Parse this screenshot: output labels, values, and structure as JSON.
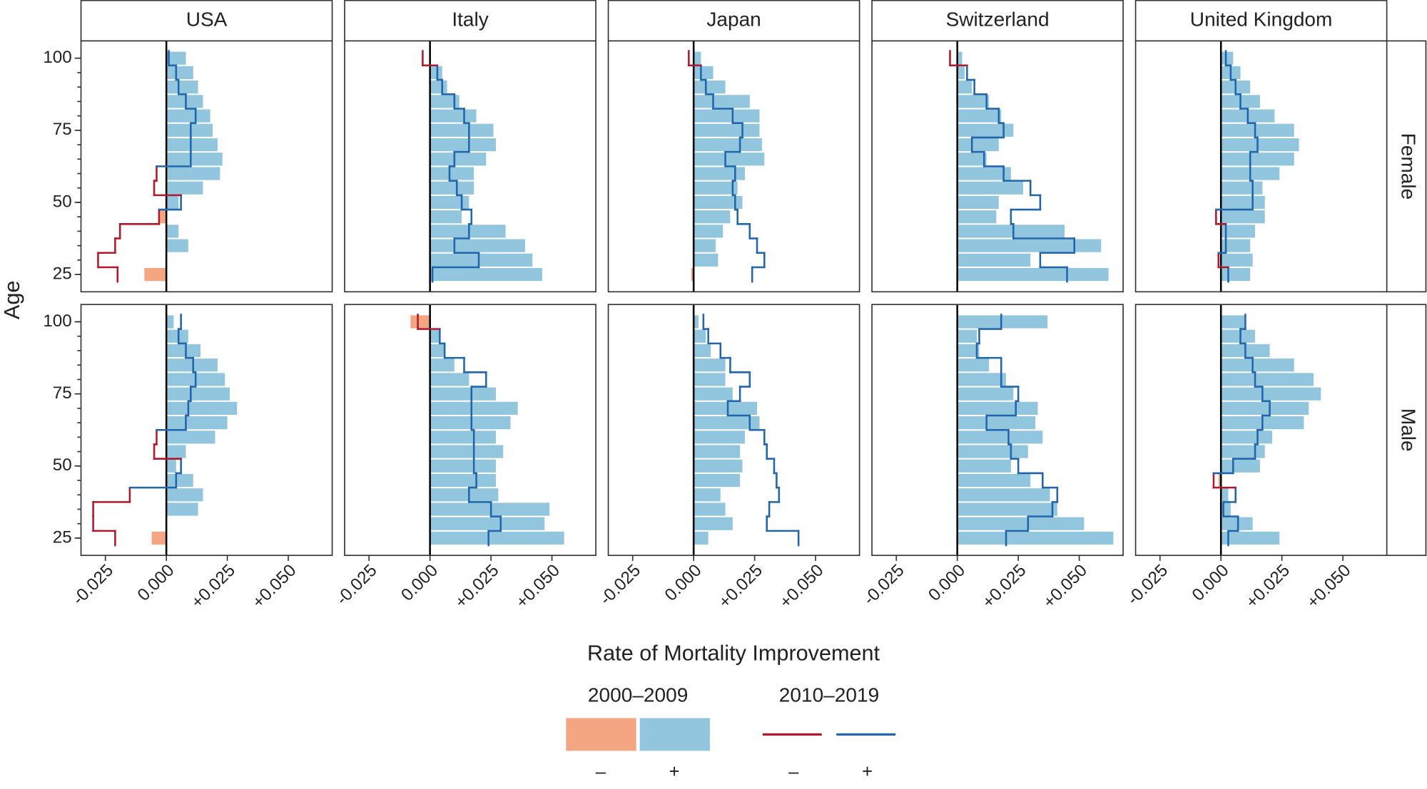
{
  "chart_data": {
    "type": "faceted-bar-step",
    "x_label": "Rate of Mortality Improvement",
    "y_label": "Age",
    "columns": [
      "USA",
      "Italy",
      "Japan",
      "Switzerland",
      "United Kingdom"
    ],
    "rows": [
      "Female",
      "Male"
    ],
    "y": [
      25,
      30,
      35,
      40,
      45,
      50,
      55,
      60,
      65,
      70,
      75,
      80,
      85,
      90,
      95,
      100
    ],
    "ylim": [
      19,
      106
    ],
    "yticks": [
      25,
      50,
      75,
      100
    ],
    "xlim": [
      -0.035,
      0.068
    ],
    "xticks": [
      {
        "value": -0.025,
        "label": "-0.025"
      },
      {
        "value": 0,
        "label": "0.000"
      },
      {
        "value": 0.025,
        "label": "+0.025"
      },
      {
        "value": 0.05,
        "label": "+0.050"
      }
    ],
    "zero_line": true,
    "series": [
      {
        "name": "2000–2009",
        "kind": "bar",
        "labels": [
          "–",
          "+"
        ],
        "colors": [
          "#f4a582",
          "#92c5de"
        ]
      },
      {
        "name": "2010–2019",
        "kind": "step",
        "labels": [
          "–",
          "+"
        ],
        "colors": [
          "#b2182b",
          "#2166ac"
        ]
      }
    ],
    "panels": [
      [
        [
          [
            -0.009,
            0,
            0.009,
            0.005,
            -0.003,
            0.005,
            0.015,
            0.022,
            0.023,
            0.021,
            0.019,
            0.018,
            0.015,
            0.013,
            0.011,
            0.008
          ],
          [
            -0.02,
            -0.028,
            -0.021,
            -0.019,
            -0.003,
            0.006,
            -0.005,
            -0.004,
            0.01,
            0.01,
            0.01,
            0.012,
            0.008,
            0.005,
            0.004,
            0.001
          ]
        ],
        [
          [
            0.046,
            0.042,
            0.039,
            0.031,
            0.013,
            0.016,
            0.018,
            0.018,
            0.023,
            0.027,
            0.026,
            0.019,
            0.012,
            0.007,
            0.005,
            0
          ],
          [
            0.001,
            0.02,
            0.01,
            0.016,
            0.017,
            0.013,
            0.011,
            0.008,
            0.01,
            0.016,
            0.016,
            0.014,
            0.01,
            0.005,
            0.003,
            -0.003
          ]
        ],
        [
          [
            -0.001,
            0.01,
            0.009,
            0.012,
            0.015,
            0.02,
            0.018,
            0.021,
            0.029,
            0.028,
            0.027,
            0.027,
            0.023,
            0.013,
            0.008,
            0.003
          ],
          [
            0.024,
            0.029,
            0.026,
            0.023,
            0.018,
            0.017,
            0.016,
            0.017,
            0.013,
            0.019,
            0.02,
            0.016,
            0.008,
            0.005,
            0.003,
            -0.002
          ]
        ],
        [
          [
            0.062,
            0.03,
            0.059,
            0.044,
            0.016,
            0.017,
            0.027,
            0.022,
            0.012,
            0.017,
            0.023,
            0.018,
            0.013,
            0.006,
            0.003,
            0.002
          ],
          [
            0.045,
            0.034,
            0.048,
            0.023,
            0.022,
            0.034,
            0.03,
            0.019,
            0.011,
            0.006,
            0.019,
            0.017,
            0.012,
            0.007,
            0.004,
            -0.003
          ]
        ],
        [
          [
            0.012,
            0.013,
            0.012,
            0.014,
            0.018,
            0.018,
            0.017,
            0.024,
            0.03,
            0.032,
            0.03,
            0.022,
            0.016,
            0.012,
            0.008,
            0.005
          ],
          [
            0.003,
            -0.001,
            0.002,
            0.002,
            -0.002,
            0.013,
            0.013,
            0.012,
            0.012,
            0.015,
            0.014,
            0.011,
            0.008,
            0.006,
            0.004,
            0.002
          ]
        ]
      ],
      [
        [
          [
            -0.006,
            0,
            0.013,
            0.015,
            0.011,
            0.004,
            0.008,
            0.02,
            0.025,
            0.029,
            0.026,
            0.024,
            0.021,
            0.014,
            0.009,
            0.003
          ],
          [
            -0.021,
            -0.03,
            -0.03,
            -0.015,
            0.004,
            0.006,
            -0.005,
            -0.004,
            0.008,
            0.009,
            0.01,
            0.012,
            0.011,
            0.008,
            0.005,
            0.006
          ]
        ],
        [
          [
            0.055,
            0.047,
            0.049,
            0.028,
            0.027,
            0.027,
            0.03,
            0.027,
            0.033,
            0.036,
            0.027,
            0.016,
            0.01,
            0.006,
            0.004,
            -0.008
          ],
          [
            0.024,
            0.029,
            0.025,
            0.016,
            0.019,
            0.018,
            0.018,
            0.018,
            0.017,
            0.017,
            0.017,
            0.023,
            0.014,
            0.006,
            0.004,
            -0.005
          ]
        ],
        [
          [
            0.006,
            0.016,
            0.013,
            0.011,
            0.019,
            0.02,
            0.019,
            0.021,
            0.027,
            0.026,
            0.016,
            0.013,
            0.013,
            0.007,
            0.005,
            0.002
          ],
          [
            0.043,
            0.03,
            0.031,
            0.035,
            0.034,
            0.033,
            0.03,
            0.029,
            0.023,
            0.014,
            0.019,
            0.023,
            0.015,
            0.011,
            0.006,
            0.004
          ]
        ],
        [
          [
            0.064,
            0.052,
            0.041,
            0.038,
            0.03,
            0.022,
            0.029,
            0.035,
            0.032,
            0.033,
            0.023,
            0.02,
            0.013,
            0.009,
            0.008,
            0.037
          ],
          [
            0.02,
            0.029,
            0.039,
            0.041,
            0.035,
            0.025,
            0.022,
            0.021,
            0.012,
            0.024,
            0.025,
            0.018,
            0.018,
            0.008,
            0.009,
            0.018
          ]
        ],
        [
          [
            0.024,
            0.013,
            0.004,
            0.003,
            -0.001,
            0.016,
            0.018,
            0.021,
            0.034,
            0.036,
            0.041,
            0.038,
            0.03,
            0.02,
            0.014,
            0.01
          ],
          [
            0.003,
            0.007,
            0.001,
            0.006,
            -0.003,
            0.005,
            0.014,
            0.015,
            0.017,
            0.02,
            0.017,
            0.014,
            0.013,
            0.01,
            0.008,
            0.01
          ]
        ]
      ]
    ]
  }
}
